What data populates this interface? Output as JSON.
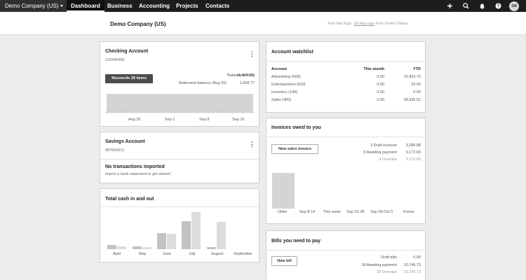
{
  "nav": {
    "org_name": "Demo Company (US)",
    "tabs": [
      "Dashboard",
      "Business",
      "Accounting",
      "Projects",
      "Contacts"
    ],
    "avatar_initials": "SM"
  },
  "header": {
    "company": "Demo Company (US)",
    "login_prefix": "Your last login:",
    "login_link": "28 days ago",
    "login_suffix": "from United States"
  },
  "checking": {
    "title": "Checking Account",
    "number": "132435465",
    "reconcile_label": "Reconcile 29 items",
    "balance_xero_label": "Balance in Xero",
    "balance_xero_value": "(4,946.33)",
    "statement_label": "Statement balance (Aug 20)",
    "statement_value": "1,608.77",
    "axis_labels": [
      "Aug 25",
      "Sep 1",
      "Sep 8",
      "Sep 15"
    ]
  },
  "savings": {
    "title": "Savings Account",
    "number": "987654321",
    "empty_title": "No transactions imported",
    "empty_sub": "Import a bank statement to get started"
  },
  "cash": {
    "title": "Total cash in and out",
    "months": [
      "April",
      "May",
      "June",
      "July",
      "August",
      "September"
    ]
  },
  "watchlist": {
    "title": "Account watchlist",
    "headers": [
      "Account",
      "This month",
      "YTD"
    ],
    "rows": [
      [
        "Advertising (600)",
        "0.00",
        "10,453.75"
      ],
      [
        "Entertainment (620)",
        "0.00",
        "53.60"
      ],
      [
        "Inventory (140)",
        "0.00",
        "0.00"
      ],
      [
        "Sales (400)",
        "0.00",
        "28,335.51"
      ]
    ]
  },
  "invoices": {
    "title": "Invoices owed to you",
    "button": "New sales invoice",
    "stats": [
      [
        "3 Draft invoices",
        "1,100.00"
      ],
      [
        "9 Awaiting payment",
        "9,172.63"
      ],
      [
        "9 Overdue",
        "9,172.63"
      ]
    ],
    "columns": [
      "Older",
      "Sep 8-14",
      "This week",
      "Sep 22-28",
      "Sep 29-Oct 5",
      "Future"
    ]
  },
  "bills": {
    "title": "Bills you need to pay",
    "button": "New bill",
    "stats": [
      [
        "Draft bills",
        "0.00"
      ],
      [
        "18 Awaiting payment",
        "10,749.73"
      ],
      [
        "18 Overdue",
        "10,749.73"
      ]
    ]
  },
  "chart_data": [
    {
      "type": "area",
      "x": [
        "Aug 25",
        "Sep 1",
        "Sep 8",
        "Sep 15"
      ],
      "title": "",
      "xlabel": "",
      "ylabel": ""
    },
    {
      "type": "bar",
      "title": "Total cash in and out",
      "categories": [
        "April",
        "May",
        "June",
        "July",
        "August",
        "September"
      ],
      "series": [
        {
          "values": [
            7,
            5,
            26,
            45,
            3,
            0
          ]
        },
        {
          "values": [
            4,
            3,
            25,
            60,
            44,
            0
          ]
        }
      ]
    },
    {
      "type": "bar",
      "title": "Invoices owed to you",
      "categories": [
        "Older",
        "Sep 8-14",
        "This week",
        "Sep 22-28",
        "Sep 29-Oct 5",
        "Future"
      ],
      "values": [
        9172.63,
        0,
        0,
        0,
        0,
        0
      ]
    }
  ]
}
